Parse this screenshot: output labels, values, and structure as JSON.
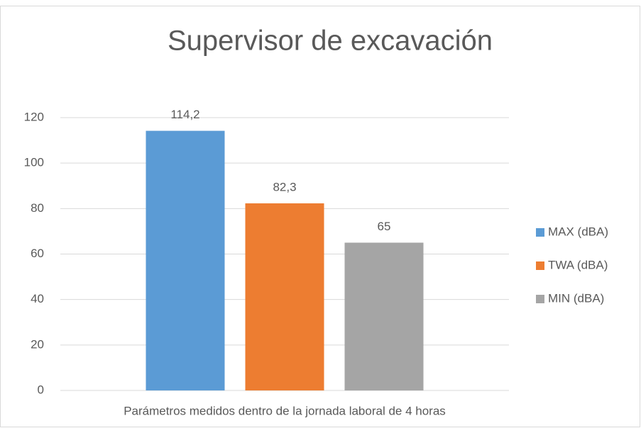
{
  "chart_data": {
    "type": "bar",
    "title": "Supervisor de excavación",
    "categories": [
      "Parámetros medidos dentro de la jornada laboral de 4 horas"
    ],
    "series": [
      {
        "name": "MAX (dBA)",
        "color": "#5b9bd5",
        "values": [
          114.2
        ],
        "value_labels": [
          "114,2"
        ]
      },
      {
        "name": "TWA (dBA)",
        "color": "#ed7d31",
        "values": [
          82.3
        ],
        "value_labels": [
          "82,3"
        ]
      },
      {
        "name": "MIN (dBA)",
        "color": "#a5a5a5",
        "values": [
          65
        ],
        "value_labels": [
          "65"
        ]
      }
    ],
    "ylim": [
      0,
      120
    ],
    "yticks": [
      0,
      20,
      40,
      60,
      80,
      100,
      120
    ],
    "grid": true,
    "legend": "right"
  }
}
